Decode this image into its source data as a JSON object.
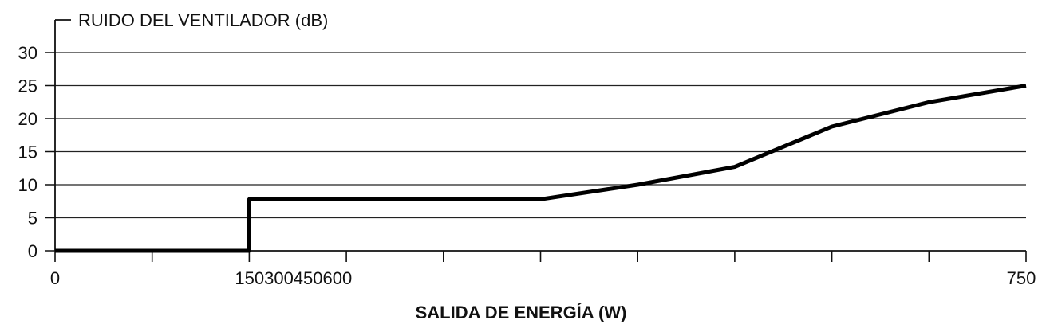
{
  "chart_data": {
    "type": "line",
    "title": "",
    "ylabel": "RUIDO DEL VENTILADOR (dB)",
    "xlabel": "SALIDA DE ENERGÍA (W)",
    "ylim": [
      0,
      30
    ],
    "yticks": [
      0,
      5,
      10,
      15,
      20,
      25,
      30
    ],
    "xlim": [
      0,
      750
    ],
    "xtick_labels": [
      "0",
      "150300450600",
      "750"
    ],
    "grid": "horizontal",
    "legend": "none",
    "line_color": "#000000",
    "series": [
      {
        "x": [
          0,
          150,
          150,
          225,
          300,
          375,
          450,
          525,
          600,
          675,
          750
        ],
        "values": [
          0,
          0,
          7.8,
          7.8,
          7.8,
          7.8,
          10,
          12.7,
          18.8,
          22.5,
          25
        ]
      }
    ]
  }
}
